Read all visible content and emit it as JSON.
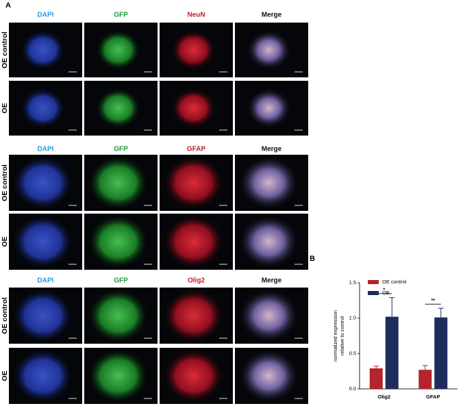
{
  "panel_a": {
    "label": "A",
    "groups": [
      {
        "channels": [
          "DAPI",
          "GFP",
          "NeuN",
          "Merge"
        ],
        "rows": [
          "OE control",
          "OE"
        ]
      },
      {
        "channels": [
          "DAPI",
          "GFP",
          "GFAP",
          "Merge"
        ],
        "rows": [
          "OE control",
          "OE"
        ]
      },
      {
        "channels": [
          "DAPI",
          "GFP",
          "Olig2",
          "Merge"
        ],
        "rows": [
          "OE control",
          "OE"
        ]
      }
    ]
  },
  "panel_b_label": "B",
  "chart_data": {
    "type": "bar",
    "y_label": [
      "normalized expression",
      "relative to control"
    ],
    "categories": [
      "Olig2",
      "GFAP"
    ],
    "series": [
      {
        "name": "OE control",
        "color": "#b3242c",
        "values": [
          0.29,
          0.27
        ],
        "errors": [
          0.03,
          0.06
        ]
      },
      {
        "name": "OE",
        "color": "#1f2d5c",
        "values": [
          1.02,
          1.01
        ],
        "errors": [
          0.27,
          0.13
        ]
      }
    ],
    "significance": [
      "*",
      "**"
    ],
    "ylim": [
      0,
      1.5
    ],
    "yticks": [
      {
        "value": 0,
        "label": "0.0"
      },
      {
        "value": 0.5,
        "label": "0.5"
      },
      {
        "value": 1,
        "label": "1.0"
      },
      {
        "value": 1.5,
        "label": "1.5"
      }
    ],
    "legend": "top-left"
  }
}
